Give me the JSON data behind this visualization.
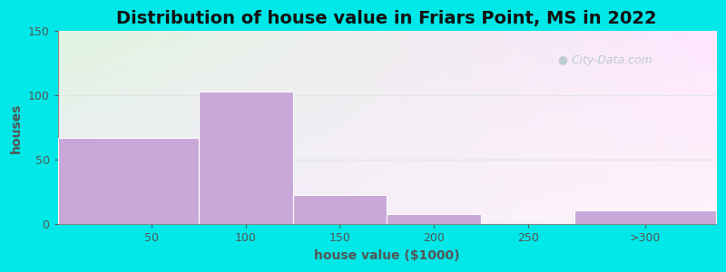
{
  "title": "Distribution of house value in Friars Point, MS in 2022",
  "xlabel": "house value ($1000)",
  "ylabel": "houses",
  "bar_values": [
    67,
    103,
    23,
    8,
    0,
    11
  ],
  "bin_lefts": [
    0,
    75,
    125,
    175,
    225,
    275
  ],
  "bin_rights": [
    75,
    125,
    175,
    225,
    275,
    350
  ],
  "bar_color": "#c8a8d8",
  "bar_edgecolor": "#ffffff",
  "ylim": [
    0,
    150
  ],
  "xlim": [
    0,
    350
  ],
  "yticks": [
    0,
    50,
    100,
    150
  ],
  "x_tick_positions": [
    50,
    100,
    150,
    200,
    250,
    312.5
  ],
  "x_tick_labels": [
    "50",
    "100",
    "150",
    "200",
    "250",
    ">300"
  ],
  "background_outer": "#00e8e8",
  "bg_top_left": "#e2f0e2",
  "bg_bottom_right": "#f0ecf8",
  "title_fontsize": 14,
  "axis_label_fontsize": 10,
  "tick_fontsize": 9,
  "watermark_text": "City-Data.com",
  "watermark_color": "#b8c8d0",
  "gridline_color": "#e0e8e0",
  "axis_color": "#888888",
  "label_color": "#555555"
}
